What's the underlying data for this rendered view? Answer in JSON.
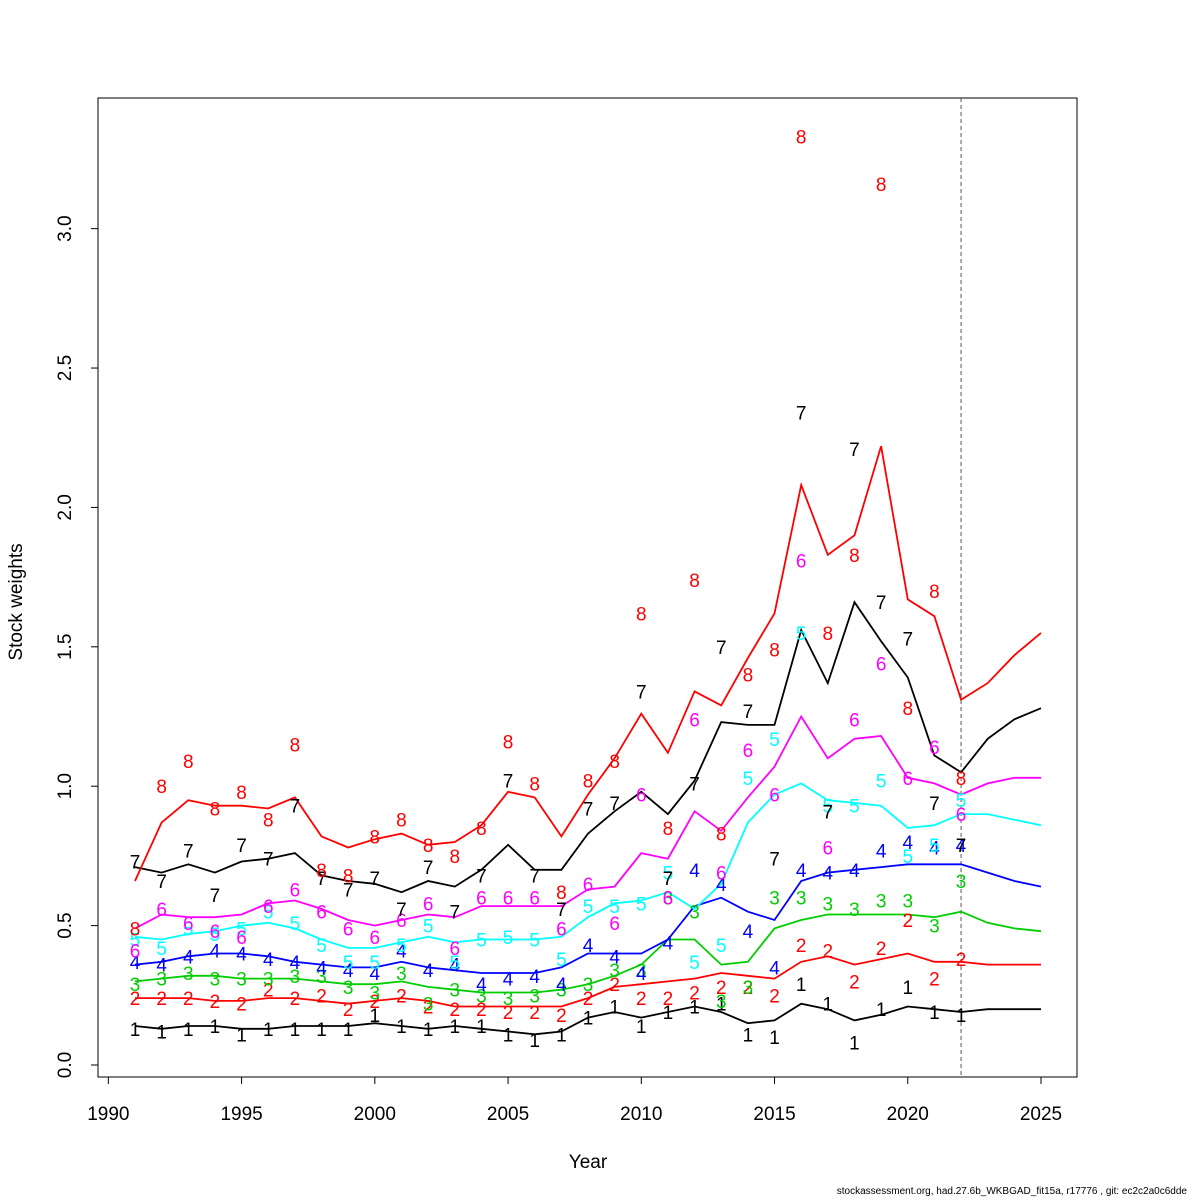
{
  "chart_data": {
    "type": "line",
    "title": "",
    "xlabel": "Year",
    "ylabel": "Stock weights",
    "xlim": [
      1991,
      2025
    ],
    "ylim": [
      0,
      3.3
    ],
    "xticks": [
      1990,
      1995,
      2000,
      2005,
      2010,
      2015,
      2020,
      2025
    ],
    "yticks": [
      0.0,
      0.5,
      1.0,
      1.5,
      2.0,
      2.5,
      3.0
    ],
    "ytick_labels": [
      "0.0",
      "0.5",
      "1.0",
      "1.5",
      "2.0",
      "2.5",
      "3.0"
    ],
    "grid": false,
    "legend": "none",
    "vline_x": 2022,
    "observed_years": [
      1991,
      1992,
      1993,
      1994,
      1995,
      1996,
      1997,
      1998,
      1999,
      2000,
      2001,
      2002,
      2003,
      2004,
      2005,
      2006,
      2007,
      2008,
      2009,
      2010,
      2011,
      2012,
      2013,
      2014,
      2015,
      2016,
      2017,
      2018,
      2019,
      2020,
      2021,
      2022
    ],
    "fitted_years": [
      1991,
      1992,
      1993,
      1994,
      1995,
      1996,
      1997,
      1998,
      1999,
      2000,
      2001,
      2002,
      2003,
      2004,
      2005,
      2006,
      2007,
      2008,
      2009,
      2010,
      2011,
      2012,
      2013,
      2014,
      2015,
      2016,
      2017,
      2018,
      2019,
      2020,
      2021,
      2022,
      2023,
      2024,
      2025
    ],
    "series": [
      {
        "label": "1",
        "color": "#000000",
        "observed": [
          0.13,
          0.12,
          0.13,
          0.14,
          0.11,
          0.13,
          0.13,
          0.13,
          0.13,
          0.18,
          0.14,
          0.13,
          0.14,
          0.14,
          0.11,
          0.09,
          0.11,
          0.17,
          0.21,
          0.14,
          0.19,
          0.21,
          0.22,
          0.11,
          0.1,
          0.29,
          0.22,
          0.08,
          0.2,
          0.28,
          0.19,
          0.18
        ],
        "fitted": [
          0.14,
          0.13,
          0.14,
          0.14,
          0.13,
          0.13,
          0.14,
          0.14,
          0.14,
          0.15,
          0.14,
          0.13,
          0.14,
          0.13,
          0.12,
          0.11,
          0.12,
          0.17,
          0.19,
          0.17,
          0.19,
          0.21,
          0.19,
          0.15,
          0.16,
          0.22,
          0.2,
          0.16,
          0.18,
          0.21,
          0.2,
          0.19,
          0.2,
          0.2,
          0.2
        ]
      },
      {
        "label": "2",
        "color": "#ff0000",
        "observed": [
          0.24,
          0.24,
          0.24,
          0.23,
          0.22,
          0.27,
          0.24,
          0.25,
          0.2,
          0.23,
          0.25,
          0.21,
          0.2,
          0.2,
          0.19,
          0.19,
          0.18,
          0.24,
          0.29,
          0.24,
          0.24,
          0.26,
          0.28,
          0.28,
          0.25,
          0.43,
          0.41,
          0.3,
          0.42,
          0.52,
          0.31,
          0.38
        ],
        "fitted": [
          0.24,
          0.24,
          0.24,
          0.23,
          0.23,
          0.24,
          0.24,
          0.23,
          0.22,
          0.23,
          0.24,
          0.23,
          0.21,
          0.21,
          0.21,
          0.21,
          0.21,
          0.24,
          0.28,
          0.29,
          0.3,
          0.31,
          0.33,
          0.32,
          0.31,
          0.37,
          0.39,
          0.36,
          0.38,
          0.4,
          0.37,
          0.37,
          0.36,
          0.36,
          0.36
        ]
      },
      {
        "label": "3",
        "color": "#00cd00",
        "observed": [
          0.29,
          0.31,
          0.33,
          0.31,
          0.31,
          0.31,
          0.32,
          0.32,
          0.28,
          0.26,
          0.33,
          0.22,
          0.27,
          0.25,
          0.24,
          0.25,
          0.27,
          0.29,
          0.34,
          0.34,
          0.6,
          0.55,
          0.23,
          0.28,
          0.6,
          0.6,
          0.58,
          0.56,
          0.59,
          0.59,
          0.5,
          0.66
        ],
        "fitted": [
          0.3,
          0.31,
          0.32,
          0.32,
          0.31,
          0.31,
          0.31,
          0.3,
          0.29,
          0.29,
          0.3,
          0.28,
          0.27,
          0.26,
          0.26,
          0.26,
          0.27,
          0.29,
          0.32,
          0.36,
          0.45,
          0.45,
          0.36,
          0.37,
          0.49,
          0.52,
          0.54,
          0.54,
          0.54,
          0.54,
          0.53,
          0.55,
          0.51,
          0.49,
          0.48
        ]
      },
      {
        "label": "4",
        "color": "#0000ff",
        "observed": [
          0.37,
          0.36,
          0.39,
          0.41,
          0.4,
          0.38,
          0.37,
          0.35,
          0.34,
          0.33,
          0.41,
          0.34,
          0.36,
          0.29,
          0.31,
          0.32,
          0.29,
          0.43,
          0.39,
          0.33,
          0.44,
          0.7,
          0.65,
          0.48,
          0.35,
          0.7,
          0.69,
          0.7,
          0.77,
          0.8,
          0.78,
          0.79
        ],
        "fitted": [
          0.36,
          0.37,
          0.39,
          0.4,
          0.4,
          0.39,
          0.37,
          0.36,
          0.35,
          0.35,
          0.37,
          0.35,
          0.34,
          0.33,
          0.33,
          0.33,
          0.35,
          0.4,
          0.4,
          0.4,
          0.45,
          0.57,
          0.6,
          0.55,
          0.52,
          0.66,
          0.69,
          0.7,
          0.71,
          0.72,
          0.72,
          0.72,
          0.69,
          0.66,
          0.64
        ]
      },
      {
        "label": "5",
        "color": "#00ffff",
        "observed": [
          0.45,
          0.42,
          0.49,
          0.47,
          0.49,
          0.55,
          0.51,
          0.43,
          0.37,
          0.37,
          0.43,
          0.5,
          0.37,
          0.45,
          0.46,
          0.45,
          0.38,
          0.57,
          0.57,
          0.58,
          0.69,
          0.37,
          0.43,
          1.03,
          1.17,
          1.55,
          0.93,
          0.93,
          1.02,
          0.75,
          0.79,
          0.95
        ],
        "fitted": [
          0.46,
          0.45,
          0.47,
          0.48,
          0.5,
          0.51,
          0.49,
          0.45,
          0.42,
          0.42,
          0.44,
          0.46,
          0.44,
          0.45,
          0.45,
          0.45,
          0.46,
          0.53,
          0.58,
          0.59,
          0.62,
          0.56,
          0.65,
          0.87,
          0.97,
          1.01,
          0.95,
          0.94,
          0.93,
          0.85,
          0.86,
          0.9,
          0.9,
          0.88,
          0.86
        ]
      },
      {
        "label": "6",
        "color": "#ff00ff",
        "observed": [
          0.41,
          0.56,
          0.51,
          0.48,
          0.46,
          0.57,
          0.63,
          0.55,
          0.49,
          0.46,
          0.52,
          0.58,
          0.42,
          0.6,
          0.6,
          0.6,
          0.49,
          0.65,
          0.51,
          0.97,
          0.6,
          1.24,
          0.69,
          1.13,
          0.97,
          1.81,
          0.78,
          1.24,
          1.44,
          1.03,
          1.14,
          0.9
        ],
        "fitted": [
          0.49,
          0.54,
          0.53,
          0.53,
          0.54,
          0.58,
          0.59,
          0.56,
          0.52,
          0.5,
          0.52,
          0.54,
          0.53,
          0.57,
          0.57,
          0.57,
          0.57,
          0.63,
          0.64,
          0.76,
          0.74,
          0.91,
          0.84,
          0.96,
          1.07,
          1.25,
          1.1,
          1.17,
          1.18,
          1.03,
          1.01,
          0.97,
          1.01,
          1.03,
          1.03
        ]
      },
      {
        "label": "7",
        "color": "#000000",
        "observed": [
          0.73,
          0.66,
          0.77,
          0.61,
          0.79,
          0.74,
          0.93,
          0.67,
          0.63,
          0.67,
          0.56,
          0.71,
          0.55,
          0.68,
          1.02,
          0.68,
          0.56,
          0.92,
          0.94,
          1.34,
          0.67,
          1.01,
          1.5,
          1.27,
          0.74,
          2.34,
          0.91,
          2.21,
          1.66,
          1.53,
          0.94,
          0.79
        ],
        "fitted": [
          0.71,
          0.69,
          0.72,
          0.69,
          0.73,
          0.74,
          0.76,
          0.68,
          0.66,
          0.65,
          0.62,
          0.66,
          0.64,
          0.7,
          0.79,
          0.7,
          0.7,
          0.83,
          0.91,
          0.98,
          0.9,
          1.02,
          1.23,
          1.22,
          1.22,
          1.56,
          1.37,
          1.66,
          1.52,
          1.39,
          1.11,
          1.05,
          1.17,
          1.24,
          1.28
        ]
      },
      {
        "label": "8",
        "color": "#ff0000",
        "observed": [
          0.49,
          1.0,
          1.09,
          0.92,
          0.98,
          0.88,
          1.15,
          0.7,
          0.68,
          0.82,
          0.88,
          0.79,
          0.75,
          0.85,
          1.16,
          1.01,
          0.62,
          1.02,
          1.09,
          1.62,
          0.85,
          1.74,
          0.83,
          1.4,
          1.49,
          3.33,
          1.55,
          1.83,
          3.16,
          1.28,
          1.7,
          1.03
        ],
        "fitted": [
          0.66,
          0.87,
          0.95,
          0.93,
          0.93,
          0.92,
          0.96,
          0.82,
          0.78,
          0.81,
          0.83,
          0.79,
          0.8,
          0.86,
          0.98,
          0.96,
          0.82,
          0.97,
          1.1,
          1.26,
          1.12,
          1.34,
          1.29,
          1.46,
          1.62,
          2.08,
          1.83,
          1.9,
          2.22,
          1.67,
          1.61,
          1.31,
          1.37,
          1.47,
          1.55
        ]
      }
    ]
  },
  "footer": {
    "text": "stockassessment.org, had.27.6b_WKBGAD_fit15a, r17776 , git: ec2c2a0c6dde"
  }
}
